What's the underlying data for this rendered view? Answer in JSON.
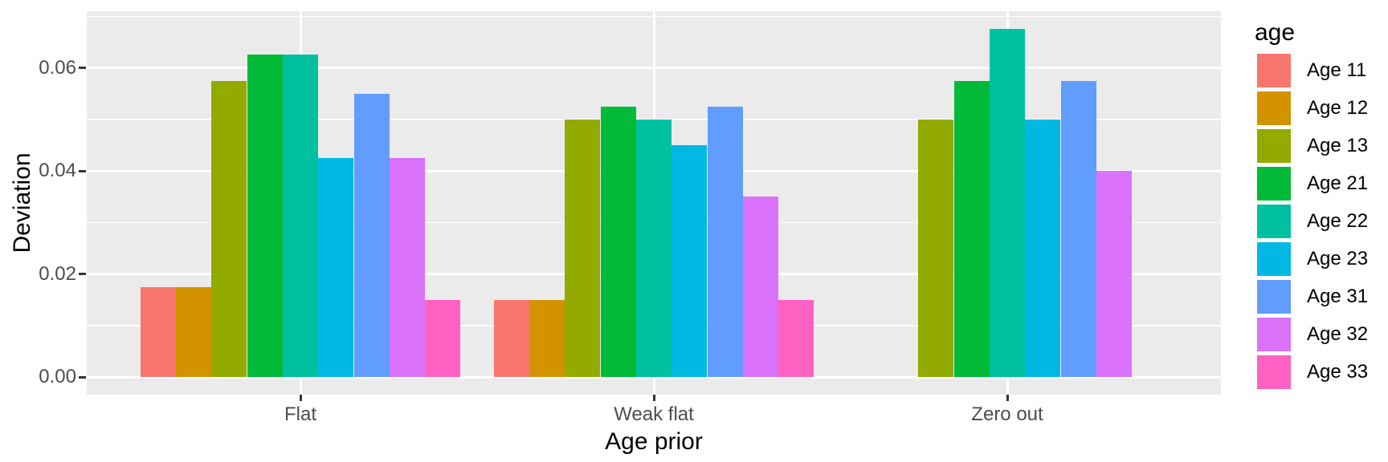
{
  "chart_data": {
    "type": "bar",
    "title": "",
    "xlabel": "Age prior",
    "ylabel": "Deviation",
    "legend_title": "age",
    "legend_position": "right",
    "grid": true,
    "grouping": "dodged",
    "categories": [
      "Flat",
      "Weak flat",
      "Zero out"
    ],
    "series": [
      {
        "name": "Age 11",
        "color": "#F8766D",
        "values": [
          0.0175,
          0.015,
          0
        ]
      },
      {
        "name": "Age 12",
        "color": "#D39200",
        "values": [
          0.0175,
          0.015,
          0
        ]
      },
      {
        "name": "Age 13",
        "color": "#93AA00",
        "values": [
          0.0575,
          0.05,
          0.05
        ]
      },
      {
        "name": "Age 21",
        "color": "#00BA38",
        "values": [
          0.0625,
          0.0525,
          0.0575
        ]
      },
      {
        "name": "Age 22",
        "color": "#00C19F",
        "values": [
          0.0625,
          0.05,
          0.0675
        ]
      },
      {
        "name": "Age 23",
        "color": "#00B9E3",
        "values": [
          0.0425,
          0.045,
          0.05
        ]
      },
      {
        "name": "Age 31",
        "color": "#619CFF",
        "values": [
          0.055,
          0.0525,
          0.0575
        ]
      },
      {
        "name": "Age 32",
        "color": "#DB72FB",
        "values": [
          0.0425,
          0.035,
          0.04
        ]
      },
      {
        "name": "Age 33",
        "color": "#FF61C3",
        "values": [
          0.015,
          0.015,
          0
        ]
      }
    ],
    "y_tick_labels": [
      "0.00",
      "0.02",
      "0.04",
      "0.06"
    ],
    "y_tick_values": [
      0,
      0.02,
      0.04,
      0.06
    ],
    "y_minor_values": [
      0.01,
      0.03,
      0.05,
      0.07
    ],
    "ylim": [
      0,
      0.0709
    ]
  },
  "colors": {
    "figure_background": "#FFFFFF",
    "panel_background": "#EBEBEB",
    "gridline": "#FFFFFF",
    "tick_mark": "#333333",
    "tick_label": "#4D4D4D",
    "title_text": "#000000"
  }
}
